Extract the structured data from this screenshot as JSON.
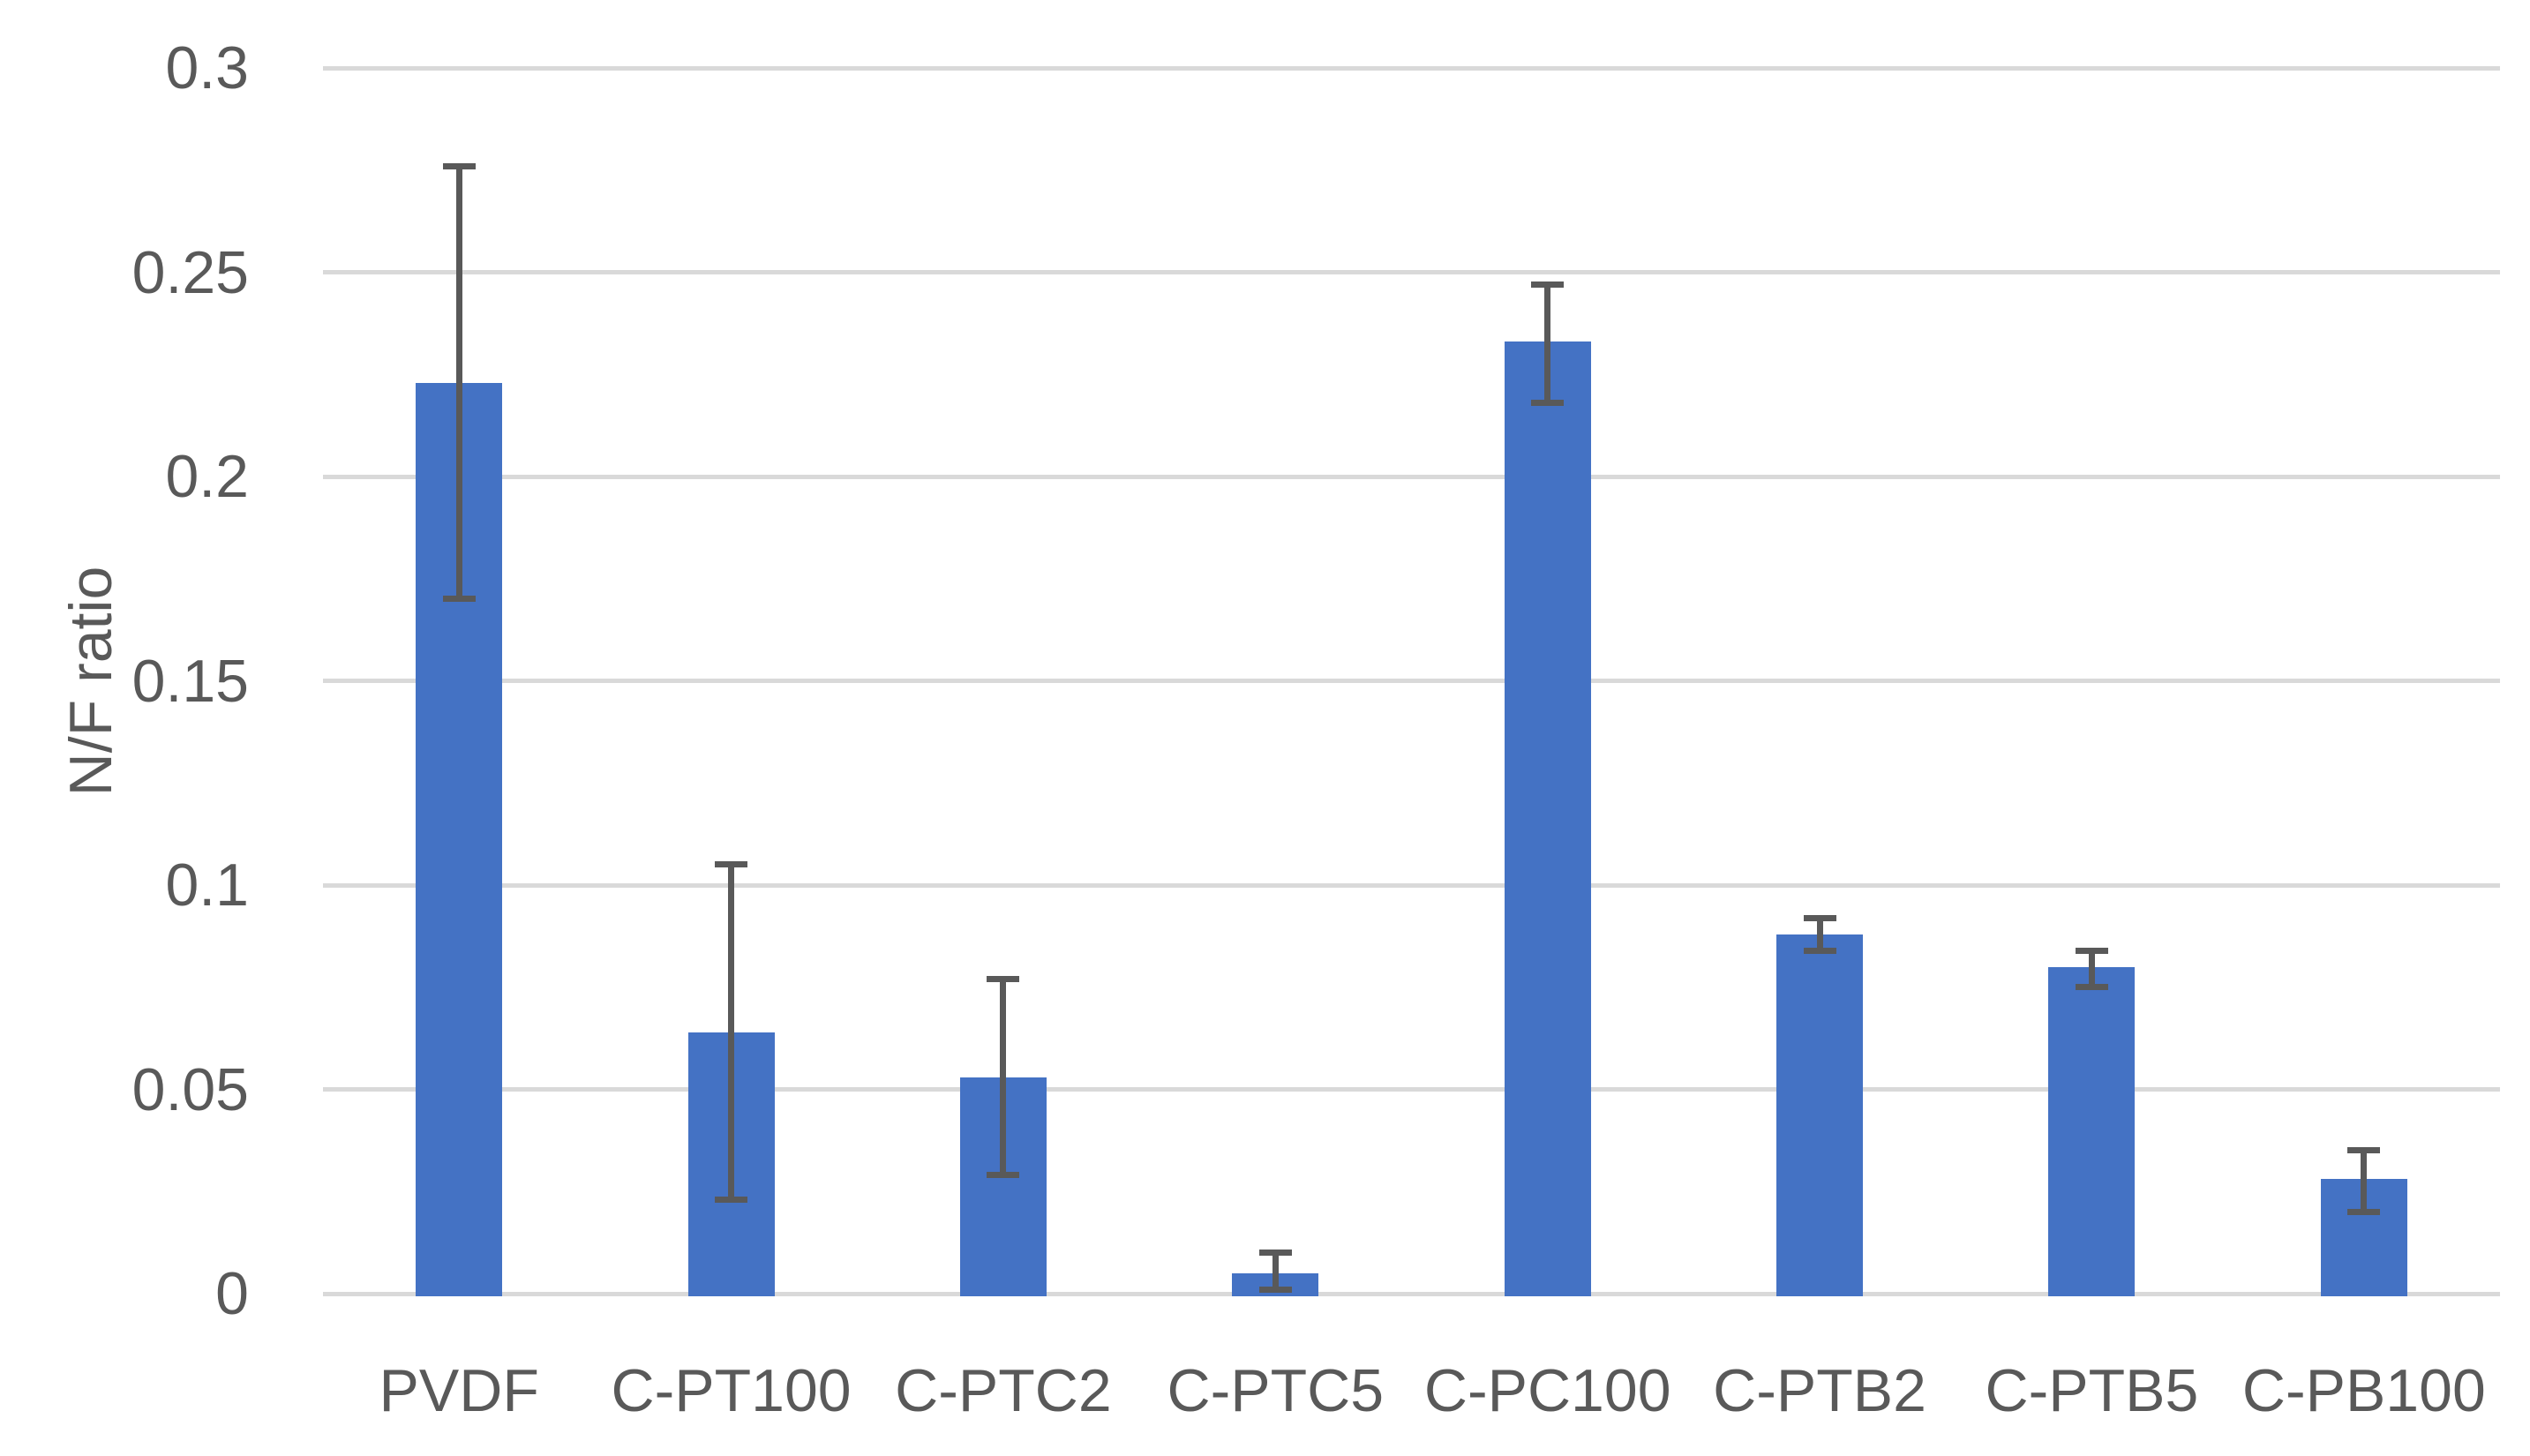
{
  "chart_data": {
    "type": "bar",
    "title": "",
    "xlabel": "",
    "ylabel": "N/F ratio",
    "categories": [
      "PVDF",
      "C-PT100",
      "C-PTC2",
      "C-PTC5",
      "C-PC100",
      "C-PTB2",
      "C-PTB5",
      "C-PB100"
    ],
    "values": [
      0.223,
      0.064,
      0.053,
      0.005,
      0.233,
      0.088,
      0.08,
      0.028
    ],
    "error_bars": {
      "upper": [
        0.276,
        0.105,
        0.077,
        0.01,
        0.247,
        0.092,
        0.084,
        0.035
      ],
      "lower": [
        0.17,
        0.023,
        0.029,
        0.001,
        0.218,
        0.084,
        0.075,
        0.02
      ]
    },
    "ylim": [
      0,
      0.3
    ],
    "ytick_step": 0.05,
    "ytick_labels": [
      "0",
      "0.05",
      "0.1",
      "0.15",
      "0.2",
      "0.25",
      "0.3"
    ],
    "grid": "horizontal",
    "legend": "none",
    "bar_color": "#4472C4",
    "error_bar_color": "#595959",
    "gridline_color": "#D9D9D9",
    "text_color": "#595959",
    "background_color": "#FFFFFF"
  }
}
